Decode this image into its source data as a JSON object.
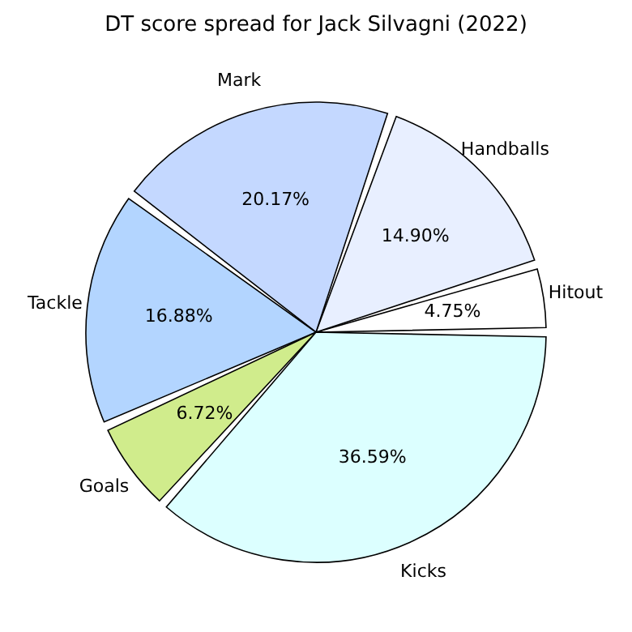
{
  "chart_data": {
    "type": "pie",
    "title": "DT score spread for Jack Silvagni (2022)",
    "categories": [
      "Hitout",
      "Handballs",
      "Mark",
      "Tackle",
      "Goals",
      "Kicks"
    ],
    "values": [
      4.75,
      14.9,
      20.17,
      16.88,
      6.72,
      36.59
    ],
    "value_labels": [
      "4.75%",
      "14.90%",
      "20.17%",
      "16.88%",
      "6.72%",
      "36.59%"
    ],
    "colors": [
      "#ffffff",
      "#e8efff",
      "#c4d8ff",
      "#b3d5ff",
      "#d0ec8c",
      "#dcffff"
    ],
    "legend": false
  }
}
